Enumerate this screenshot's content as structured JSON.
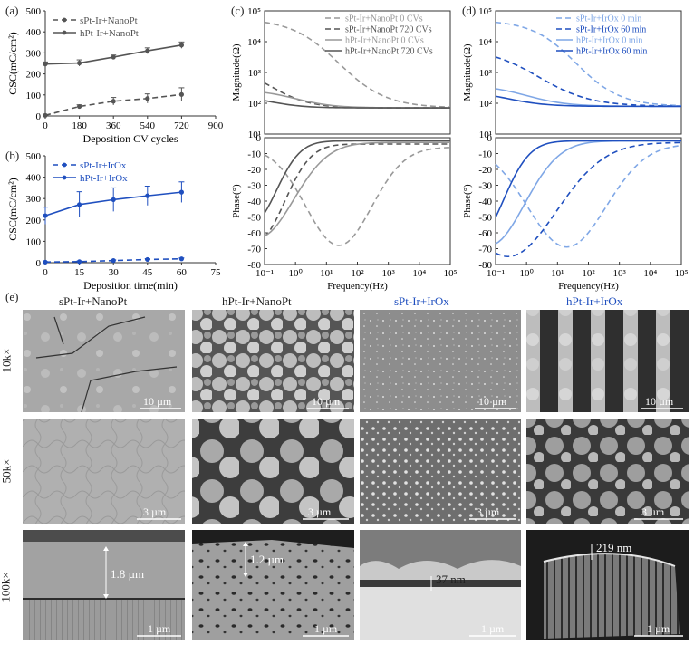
{
  "panel_labels": {
    "a": "(a)",
    "b": "(b)",
    "c": "(c)",
    "d": "(d)",
    "e": "(e)"
  },
  "column_headers": [
    "sPt-Ir+NanoPt",
    "hPt-Ir+NanoPt",
    "sPt-Ir+IrOx",
    "hPt-Ir+IrOx"
  ],
  "row_labels": [
    "10k×",
    "50k×",
    "100k×"
  ],
  "scale_bars": [
    [
      "10 µm",
      "10 µm",
      "10 µm",
      "10 µm"
    ],
    [
      "3 µm",
      "3 µm",
      "3 µm",
      "3 µm"
    ],
    [
      "1 µm",
      "1 µm",
      "1 µm",
      "1 µm"
    ]
  ],
  "thickness_labels": [
    "1.8 µm",
    "1.2 µm",
    "37 nm",
    "219 nm"
  ],
  "colors": {
    "grey_dark": "#555555",
    "grey_light": "#999999",
    "blue_dark": "#1f4fbf",
    "blue_light": "#7fa7e6",
    "blue_text": "#1f4fbf"
  },
  "chart_data": [
    {
      "id": "a",
      "type": "line",
      "xlabel": "Deposition CV cycles",
      "ylabel": "CSC(mC/cm²)",
      "xlim": [
        0,
        900
      ],
      "ylim": [
        0,
        500
      ],
      "xticks": [
        0,
        180,
        360,
        540,
        720,
        900
      ],
      "yticks": [
        0,
        100,
        200,
        300,
        400,
        500
      ],
      "legend": "top-left",
      "series": [
        {
          "name": "sPt-Ir+NanoPt",
          "style": "dashed",
          "color": "#555555",
          "x": [
            0,
            180,
            360,
            540,
            720
          ],
          "y": [
            3,
            45,
            70,
            83,
            102
          ],
          "err": [
            3,
            8,
            18,
            22,
            32
          ]
        },
        {
          "name": "hPt-Ir+NanoPt",
          "style": "solid",
          "color": "#555555",
          "x": [
            0,
            180,
            360,
            540,
            720
          ],
          "y": [
            247,
            252,
            280,
            310,
            337
          ],
          "err": [
            10,
            15,
            10,
            14,
            15
          ]
        }
      ]
    },
    {
      "id": "b",
      "type": "line",
      "xlabel": "Deposition time(min)",
      "ylabel": "CSC(mC/cm²)",
      "xlim": [
        0,
        75
      ],
      "ylim": [
        0,
        500
      ],
      "xticks": [
        0,
        15,
        30,
        45,
        60,
        75
      ],
      "yticks": [
        0,
        100,
        200,
        300,
        400,
        500
      ],
      "legend": "top-left",
      "series": [
        {
          "name": "sPt-Ir+IrOx",
          "style": "dashed",
          "color": "#1f4fbf",
          "x": [
            0,
            15,
            30,
            45,
            60
          ],
          "y": [
            3,
            5,
            10,
            15,
            18
          ],
          "err": [
            2,
            3,
            3,
            4,
            4
          ]
        },
        {
          "name": "hPt-Ir+IrOx",
          "style": "solid",
          "color": "#1f4fbf",
          "x": [
            0,
            15,
            30,
            45,
            60
          ],
          "y": [
            220,
            272,
            295,
            313,
            330
          ],
          "err": [
            40,
            60,
            55,
            45,
            48
          ]
        }
      ]
    },
    {
      "id": "c",
      "type": "line",
      "xlabel": "Frequency(Hz)",
      "ylabel_top": "Magnitude(Ω)",
      "ylabel_bottom": "Phase(°)",
      "xscale": "log",
      "xlim": [
        0.1,
        100000
      ],
      "ylim_top": [
        10,
        100000
      ],
      "ylim_bottom": [
        0,
        -80
      ],
      "xticks": [
        "10⁻¹",
        "10⁰",
        "10¹",
        "10²",
        "10³",
        "10⁴",
        "10⁵"
      ],
      "yticks_top": [
        "10¹",
        "10²",
        "10³",
        "10⁴",
        "10⁵"
      ],
      "yticks_bottom": [
        "0",
        "-10",
        "-20",
        "-30",
        "-40",
        "-50",
        "-60",
        "-70",
        "-80"
      ],
      "legend": "top-right",
      "series": [
        {
          "name": "sPt-Ir+NanoPt 0 CVs",
          "style": "dashed",
          "color": "#999999"
        },
        {
          "name": "sPt-Ir+NanoPt 720 CVs",
          "style": "dashed",
          "color": "#555555"
        },
        {
          "name": "hPt-Ir+NanoPt 0 CVs",
          "style": "solid",
          "color": "#999999"
        },
        {
          "name": "hPt-Ir+NanoPt 720 CVs",
          "style": "solid",
          "color": "#555555"
        }
      ]
    },
    {
      "id": "d",
      "type": "line",
      "xlabel": "Frequency(Hz)",
      "ylabel_top": "Magnitude(Ω)",
      "ylabel_bottom": "Phase(°)",
      "xscale": "log",
      "xlim": [
        0.1,
        100000
      ],
      "ylim_top": [
        10,
        100000
      ],
      "ylim_bottom": [
        0,
        -80
      ],
      "xticks": [
        "10⁻¹",
        "10⁰",
        "10¹",
        "10²",
        "10³",
        "10⁴",
        "10⁵"
      ],
      "yticks_top": [
        "10¹",
        "10²",
        "10³",
        "10⁴",
        "10⁵"
      ],
      "yticks_bottom": [
        "0",
        "-10",
        "-20",
        "-30",
        "-40",
        "-50",
        "-60",
        "-70",
        "-80"
      ],
      "legend": "top-right",
      "series": [
        {
          "name": "sPt-Ir+IrOx 0 min",
          "style": "dashed",
          "color": "#7fa7e6"
        },
        {
          "name": "sPt-Ir+IrOx 60 min",
          "style": "dashed",
          "color": "#1f4fbf"
        },
        {
          "name": "hPt-Ir+IrOx 0 min",
          "style": "solid",
          "color": "#7fa7e6"
        },
        {
          "name": "hPt-Ir+IrOx 60 min",
          "style": "solid",
          "color": "#1f4fbf"
        }
      ]
    }
  ]
}
